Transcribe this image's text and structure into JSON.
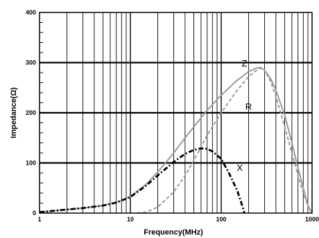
{
  "chart_data": {
    "type": "line",
    "title": "",
    "xlabel": "Frequency(MHz)",
    "ylabel": "Impedance(Ω)",
    "xscale": "log",
    "xlim": [
      1,
      1000
    ],
    "ylim": [
      0,
      400
    ],
    "x_ticks": [
      "1",
      "10",
      "100",
      "1000"
    ],
    "y_ticks": [
      "0",
      "100",
      "200",
      "300",
      "400"
    ],
    "grid": true,
    "series": [
      {
        "name": "Z",
        "color": "#9a9a9a",
        "style": "solid",
        "x": [
          1,
          2,
          3,
          5,
          7,
          10,
          15,
          20,
          30,
          40,
          50,
          70,
          100,
          150,
          200,
          250,
          270,
          300,
          350,
          400,
          500,
          600,
          700,
          800,
          900,
          1000
        ],
        "y": [
          2,
          7,
          10,
          15,
          21,
          33,
          58,
          82,
          120,
          150,
          172,
          205,
          235,
          265,
          282,
          290,
          290,
          285,
          268,
          245,
          195,
          140,
          90,
          50,
          15,
          0
        ]
      },
      {
        "name": "R",
        "color": "#9a9a9a",
        "style": "dashed",
        "x": [
          12,
          15,
          20,
          30,
          40,
          50,
          70,
          100,
          150,
          200,
          250,
          280,
          300,
          350,
          400,
          500,
          600,
          700,
          800,
          900,
          1000
        ],
        "y": [
          0,
          2,
          12,
          42,
          75,
          105,
          155,
          200,
          245,
          272,
          286,
          290,
          285,
          262,
          232,
          172,
          120,
          75,
          40,
          15,
          0
        ]
      },
      {
        "name": "X",
        "color": "#000000",
        "style": "dash-dot",
        "x": [
          1,
          2,
          3,
          5,
          7,
          10,
          15,
          20,
          30,
          40,
          50,
          60,
          70,
          80,
          100,
          120,
          150,
          170,
          180
        ],
        "y": [
          2,
          7,
          10,
          15,
          21,
          32,
          55,
          75,
          102,
          118,
          126,
          129,
          128,
          123,
          108,
          82,
          45,
          15,
          0
        ]
      }
    ]
  }
}
